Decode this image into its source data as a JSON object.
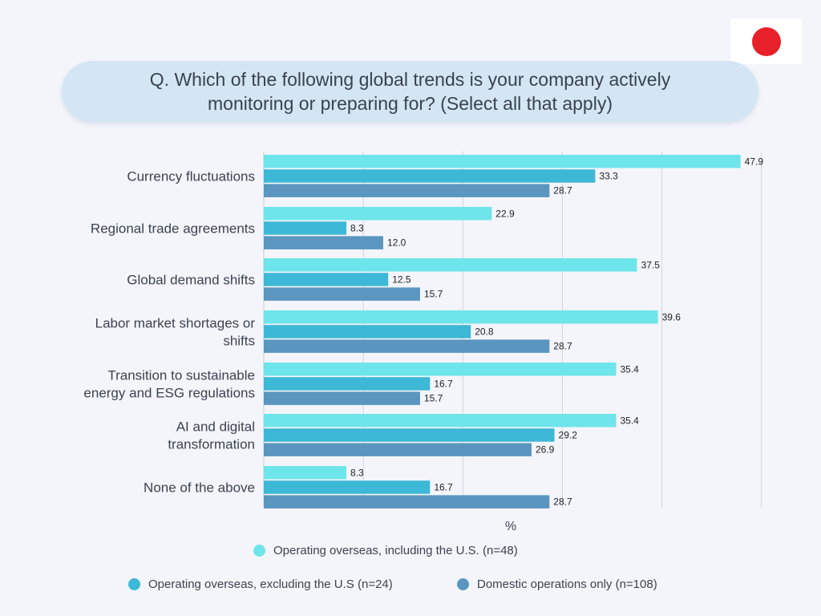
{
  "title": "Q. Which of the following global trends is your company actively monitoring or preparing for? (Select all that apply)",
  "flag_icon": "japan-flag-icon",
  "colors": {
    "background": "#f4f5fb",
    "title_box": "#d4e6f3",
    "flag_circle": "#e8202a"
  },
  "chart_data": {
    "type": "bar",
    "orientation": "horizontal",
    "categories": [
      "Currency fluctuations",
      "Regional trade agreements",
      "Global demand shifts",
      "Labor market shortages or shifts",
      "Transition to sustainable energy and ESG regulations",
      "AI and digital transformation",
      "None of the above"
    ],
    "series": [
      {
        "name": "Operating overseas, including the U.S. (n=48)",
        "color": "#6ee5ea",
        "values": [
          47.9,
          22.9,
          37.5,
          39.6,
          35.4,
          35.4,
          8.3
        ]
      },
      {
        "name": "Operating overseas, excluding the U.S (n=24)",
        "color": "#3db8d6",
        "values": [
          33.3,
          8.3,
          12.5,
          20.8,
          16.7,
          29.2,
          16.7
        ]
      },
      {
        "name": "Domestic operations only (n=108)",
        "color": "#5a96bf",
        "values": [
          28.7,
          12.0,
          15.7,
          28.7,
          15.7,
          26.9,
          28.7
        ]
      }
    ],
    "xlabel": "%",
    "xlim": [
      0,
      48
    ],
    "grid": true,
    "data_labels": true,
    "legend_position": "bottom"
  }
}
